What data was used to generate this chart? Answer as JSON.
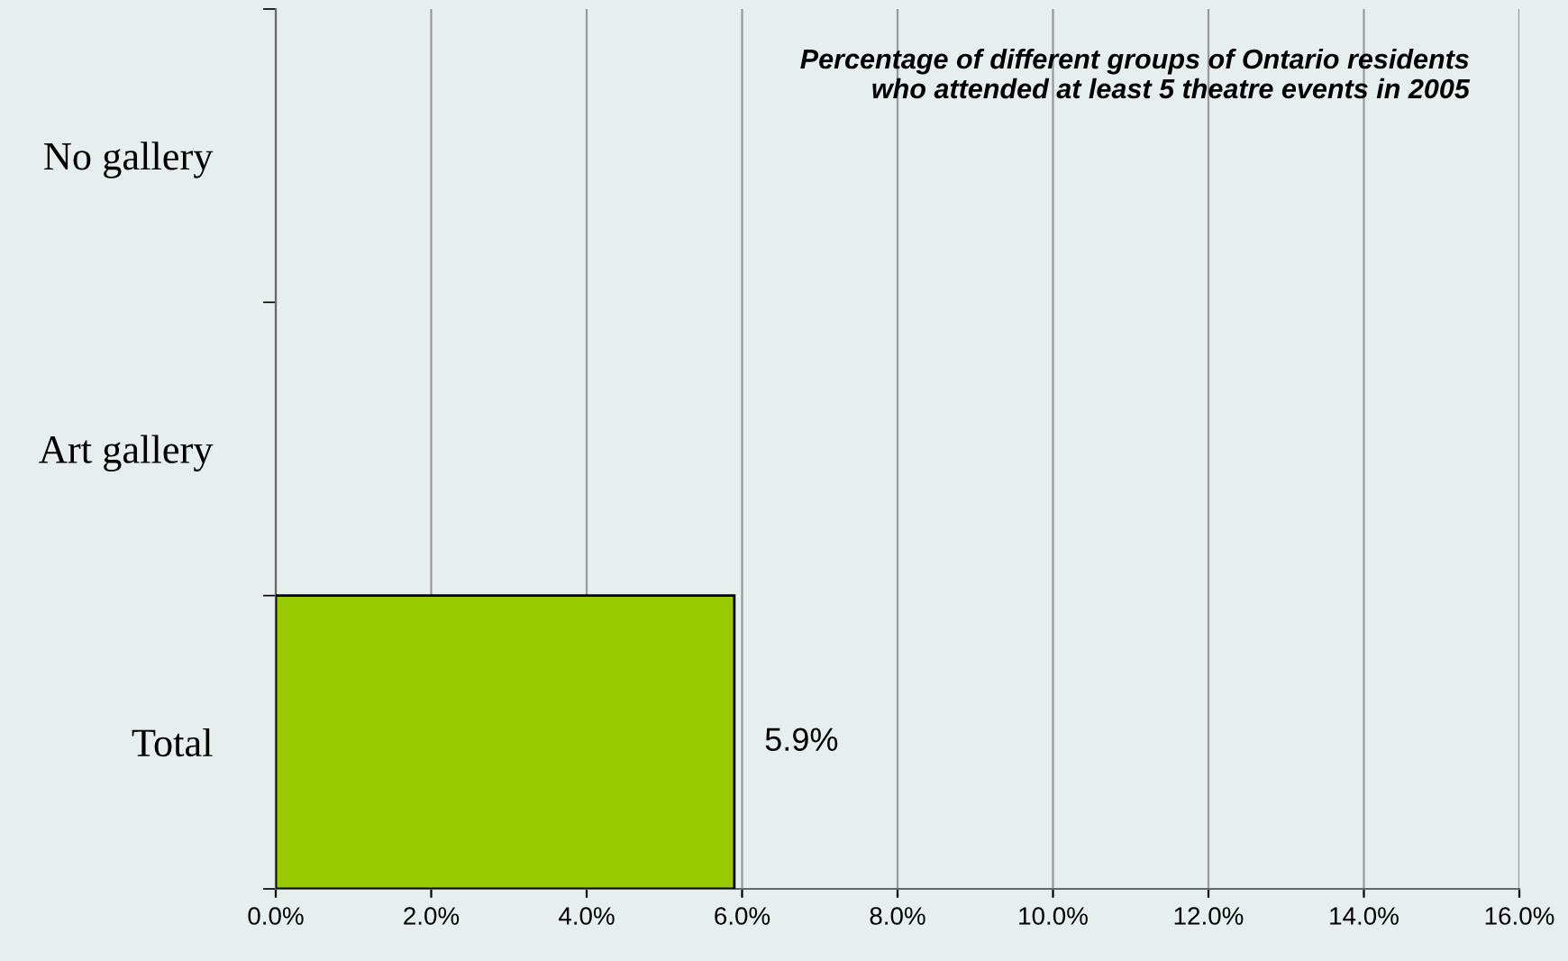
{
  "chart_data": {
    "type": "bar",
    "orientation": "horizontal",
    "title": "Percentage of different groups of Ontario residents\nwho attended at least 5 theatre events in 2005",
    "categories": [
      "No gallery",
      "Art gallery",
      "Total"
    ],
    "values": [
      null,
      null,
      5.9
    ],
    "color": "#99cc00",
    "value_labels": [
      null,
      null,
      "5.9%"
    ],
    "xlim": [
      0,
      16
    ],
    "xticks": [
      {
        "value": 0,
        "label": "0.0%"
      },
      {
        "value": 2,
        "label": "2.0%"
      },
      {
        "value": 4,
        "label": "4.0%"
      },
      {
        "value": 6,
        "label": "6.0%"
      },
      {
        "value": 8,
        "label": "8.0%"
      },
      {
        "value": 10,
        "label": "10.0%"
      },
      {
        "value": 12,
        "label": "12.0%"
      },
      {
        "value": 14,
        "label": "14.0%"
      },
      {
        "value": 16,
        "label": "16.0%"
      }
    ],
    "grid": "x",
    "legend": false
  }
}
